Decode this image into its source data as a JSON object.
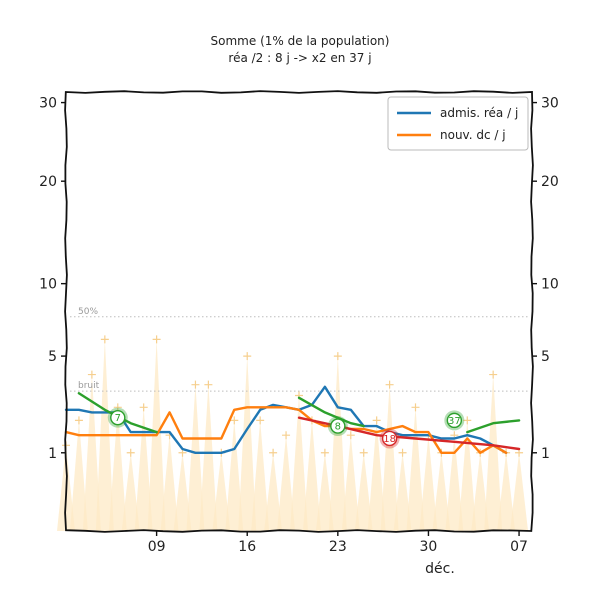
{
  "chart_data": {
    "type": "line",
    "title": "Somme (1% de la population)",
    "subtitle": "réa /2 : 8 j -> x2 en 37 j",
    "xlabel": "déc.",
    "ylabel": "",
    "y_ticks": [
      1,
      5,
      10,
      20,
      30
    ],
    "y_scale": "sqrt",
    "ylim": [
      0,
      31.5
    ],
    "x_ticks": [
      "09",
      "16",
      "23",
      "30",
      "07"
    ],
    "x_tick_days": [
      9,
      16,
      23,
      30,
      37
    ],
    "xlim": [
      2,
      38
    ],
    "threshold_lines": [
      {
        "label": "50%",
        "value": 7.5
      },
      {
        "label": "bruit",
        "value": 3.2
      }
    ],
    "legend": {
      "position": "top-right",
      "entries": [
        {
          "label": "admis. réa / j",
          "color": "#1f77b4"
        },
        {
          "label": "nouv. dc / j",
          "color": "#ff7f0e"
        }
      ]
    },
    "series": [
      {
        "name": "admis. réa / j",
        "color": "#1f77b4",
        "x": [
          2,
          3,
          4,
          5,
          6,
          7,
          8,
          9,
          10,
          11,
          12,
          13,
          14,
          15,
          16,
          17,
          18,
          19,
          20,
          21,
          22,
          23,
          24,
          25,
          26,
          27,
          28,
          29,
          30,
          31,
          32,
          33,
          34,
          35,
          36
        ],
        "values": [
          2.4,
          2.4,
          2.3,
          2.3,
          2.3,
          1.6,
          1.6,
          1.6,
          1.6,
          1.1,
          1.0,
          1.0,
          1.0,
          1.1,
          1.7,
          2.4,
          2.6,
          2.5,
          2.4,
          2.6,
          3.4,
          2.5,
          2.4,
          1.8,
          1.8,
          1.6,
          1.5,
          1.5,
          1.5,
          1.4,
          1.4,
          1.5,
          1.4,
          1.2,
          1.0
        ]
      },
      {
        "name": "nouv. dc / j",
        "color": "#ff7f0e",
        "x": [
          2,
          3,
          4,
          5,
          6,
          7,
          8,
          9,
          10,
          11,
          12,
          13,
          14,
          15,
          16,
          17,
          18,
          19,
          20,
          21,
          22,
          23,
          24,
          25,
          26,
          27,
          28,
          29,
          30,
          31,
          32,
          33,
          34,
          35,
          36
        ],
        "values": [
          1.6,
          1.5,
          1.5,
          1.5,
          1.5,
          1.5,
          1.5,
          1.5,
          2.3,
          1.4,
          1.4,
          1.4,
          1.4,
          2.4,
          2.5,
          2.5,
          2.5,
          2.5,
          2.4,
          2.0,
          1.8,
          1.8,
          1.7,
          1.7,
          1.6,
          1.7,
          1.8,
          1.6,
          1.6,
          1.0,
          1.0,
          1.4,
          1.0,
          1.2,
          1.0
        ]
      },
      {
        "name": "",
        "color": "#2ca02c",
        "segments": [
          {
            "x": [
              3,
              5,
              7,
              9
            ],
            "values": [
              3.1,
              2.4,
              1.9,
              1.6
            ]
          },
          {
            "x": [
              20,
              22,
              24,
              25
            ],
            "values": [
              2.9,
              2.3,
              1.9,
              1.8
            ]
          },
          {
            "x": [
              33,
              35,
              37
            ],
            "values": [
              1.6,
              1.9,
              2.0
            ]
          }
        ]
      },
      {
        "name": "",
        "color": "#d62728",
        "x": [
          20,
          23,
          26,
          29,
          32,
          35,
          37
        ],
        "values": [
          2.1,
          1.8,
          1.5,
          1.4,
          1.3,
          1.2,
          1.1
        ]
      }
    ],
    "background_series": {
      "name": "",
      "color": "#fde9c5",
      "x": [
        2,
        3,
        4,
        5,
        6,
        7,
        8,
        9,
        10,
        11,
        12,
        13,
        14,
        15,
        16,
        17,
        18,
        19,
        20,
        21,
        22,
        23,
        24,
        25,
        26,
        27,
        28,
        29,
        30,
        31,
        32,
        33,
        34,
        35,
        36,
        37
      ],
      "values": [
        1.2,
        2.0,
        4.0,
        6.0,
        2.5,
        1.0,
        2.5,
        6.0,
        1.5,
        1.0,
        3.5,
        3.5,
        1.0,
        2.0,
        5.0,
        2.0,
        1.0,
        1.5,
        3.0,
        2.0,
        1.0,
        5.0,
        1.5,
        1.0,
        2.0,
        3.5,
        1.0,
        2.5,
        1.5,
        1.0,
        1.5,
        2.0,
        1.0,
        4.0,
        1.0,
        1.0
      ]
    },
    "annotations": [
      {
        "text": "7",
        "x": 6,
        "y": 2.1,
        "color": "#2ca02c"
      },
      {
        "text": "8",
        "x": 23,
        "y": 1.8,
        "color": "#2ca02c"
      },
      {
        "text": "18",
        "x": 27,
        "y": 1.4,
        "color": "#d62728"
      },
      {
        "text": "37",
        "x": 32,
        "y": 2.0,
        "color": "#2ca02c"
      }
    ],
    "grid": false
  }
}
